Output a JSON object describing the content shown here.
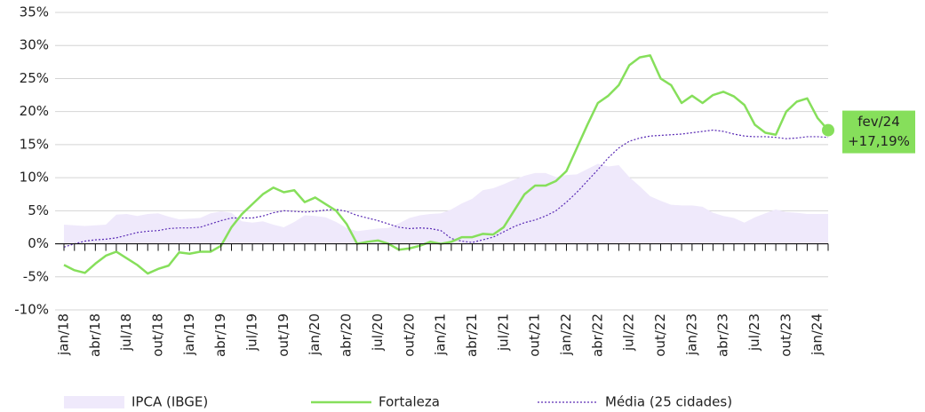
{
  "chart_data": {
    "type": "line",
    "categories": [
      "jan/18",
      null,
      null,
      "abr/18",
      null,
      null,
      "jul/18",
      null,
      null,
      "out/18",
      null,
      null,
      "jan/19",
      null,
      null,
      "abr/19",
      null,
      null,
      "jul/19",
      null,
      null,
      "out/19",
      null,
      null,
      "jan/20",
      null,
      null,
      "abr/20",
      null,
      null,
      "jul/20",
      null,
      null,
      "out/20",
      null,
      null,
      "jan/21",
      null,
      null,
      "abr/21",
      null,
      null,
      "jul/21",
      null,
      null,
      "out/21",
      null,
      null,
      "jan/22",
      null,
      null,
      "abr/22",
      null,
      null,
      "jul/22",
      null,
      null,
      "out/22",
      null,
      null,
      "jan/23",
      null,
      null,
      "abr/23",
      null,
      null,
      "jul/23",
      null,
      null,
      "out/23",
      null,
      null,
      "jan/24",
      null
    ],
    "series": [
      {
        "name": "IPCA (IBGE)",
        "style": "area",
        "color": "#efe9fb",
        "values": [
          2.9,
          2.8,
          2.7,
          2.8,
          2.9,
          4.4,
          4.5,
          4.2,
          4.5,
          4.6,
          4.1,
          3.7,
          3.8,
          3.9,
          4.6,
          4.9,
          4.7,
          3.4,
          3.2,
          3.4,
          2.9,
          2.5,
          3.3,
          4.3,
          4.2,
          4.0,
          3.3,
          2.4,
          1.9,
          2.1,
          2.3,
          2.4,
          3.1,
          3.9,
          4.3,
          4.5,
          4.6,
          5.2,
          6.1,
          6.8,
          8.1,
          8.4,
          9.0,
          9.7,
          10.3,
          10.7,
          10.7,
          10.1,
          10.4,
          10.5,
          11.3,
          12.1,
          11.7,
          11.9,
          10.1,
          8.7,
          7.2,
          6.5,
          5.9,
          5.8,
          5.8,
          5.6,
          4.7,
          4.2,
          3.9,
          3.2,
          4.0,
          4.6,
          5.2,
          4.8,
          4.7,
          4.5,
          4.5,
          4.5
        ]
      },
      {
        "name": "Fortaleza",
        "style": "solid",
        "color": "#86df5b",
        "values": [
          -3.2,
          -4.0,
          -4.4,
          -3.0,
          -1.8,
          -1.2,
          -2.2,
          -3.2,
          -4.5,
          -3.8,
          -3.3,
          -1.3,
          -1.5,
          -1.2,
          -1.2,
          -0.3,
          2.5,
          4.5,
          6.0,
          7.5,
          8.5,
          7.8,
          8.1,
          6.3,
          7.0,
          6.0,
          5.0,
          3.0,
          0.0,
          0.3,
          0.5,
          0.0,
          -0.9,
          -0.7,
          -0.3,
          0.3,
          0.0,
          0.3,
          1.0,
          1.0,
          1.5,
          1.4,
          2.5,
          5.0,
          7.5,
          8.8,
          8.8,
          9.5,
          11.0,
          14.5,
          18.0,
          21.3,
          22.4,
          24.0,
          27.0,
          28.2,
          28.5,
          25.0,
          24.0,
          21.3,
          22.4,
          21.3,
          22.5,
          23.0,
          22.3,
          21.0,
          18.0,
          16.8,
          16.5,
          20.0,
          21.5,
          22.0,
          19.0,
          17.19
        ],
        "value_labels": [
          null,
          null,
          null,
          null,
          null,
          null,
          null,
          null,
          null,
          null,
          null,
          null,
          null,
          null,
          null,
          null,
          null,
          null,
          null,
          null,
          null,
          null,
          null,
          null,
          null,
          null,
          null,
          null,
          null,
          null,
          null,
          null,
          null,
          null,
          null,
          null,
          null,
          null,
          null,
          null,
          null,
          null,
          null,
          null,
          null,
          null,
          null,
          null,
          null,
          null,
          null,
          null,
          null,
          null,
          null,
          null,
          null,
          null,
          null,
          null,
          null,
          null,
          null,
          null,
          null,
          null,
          null,
          null,
          null,
          null,
          null,
          null,
          null,
          "+17,19%"
        ]
      },
      {
        "name": "Média (25 cidades)",
        "style": "dotted",
        "color": "#5a2bb5",
        "values": [
          -0.5,
          0.0,
          0.4,
          0.6,
          0.7,
          0.9,
          1.3,
          1.7,
          1.9,
          2.0,
          2.3,
          2.4,
          2.4,
          2.5,
          3.0,
          3.5,
          3.9,
          3.9,
          3.9,
          4.2,
          4.7,
          5.0,
          4.9,
          4.8,
          4.9,
          5.1,
          5.2,
          4.9,
          4.3,
          3.9,
          3.5,
          3.0,
          2.5,
          2.3,
          2.4,
          2.3,
          2.0,
          0.8,
          0.4,
          0.2,
          0.6,
          1.0,
          1.8,
          2.6,
          3.2,
          3.6,
          4.2,
          5.0,
          6.3,
          7.8,
          9.5,
          11.2,
          13.0,
          14.5,
          15.5,
          16.0,
          16.3,
          16.4,
          16.5,
          16.6,
          16.8,
          17.0,
          17.2,
          17.0,
          16.6,
          16.3,
          16.2,
          16.2,
          16.1,
          15.9,
          16.0,
          16.2,
          16.2,
          16.1
        ]
      }
    ],
    "annotation": {
      "label": "fev/24"
    },
    "ylim": [
      -10,
      35
    ],
    "yticks": [
      {
        "value": -10,
        "label": "-10%"
      },
      {
        "value": -5,
        "label": "-5%"
      },
      {
        "value": 0,
        "label": "0%"
      },
      {
        "value": 5,
        "label": "5%"
      },
      {
        "value": 10,
        "label": "10%"
      },
      {
        "value": 15,
        "label": "15%"
      },
      {
        "value": 20,
        "label": "20%"
      },
      {
        "value": 25,
        "label": "25%"
      },
      {
        "value": 30,
        "label": "30%"
      },
      {
        "value": 35,
        "label": "35%"
      }
    ],
    "grid": true
  }
}
